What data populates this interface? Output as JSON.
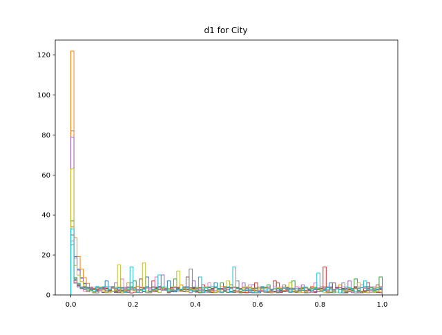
{
  "chart_data": {
    "type": "line",
    "title": "d1 for City",
    "xlabel": "",
    "ylabel": "",
    "xlim": [
      -0.05,
      1.05
    ],
    "ylim": [
      0,
      127.5
    ],
    "xticks": [
      0.0,
      0.2,
      0.4,
      0.6,
      0.8,
      1.0
    ],
    "xtick_labels": [
      "0.0",
      "0.2",
      "0.4",
      "0.6",
      "0.8",
      "1.0"
    ],
    "yticks": [
      0,
      20,
      40,
      60,
      80,
      100,
      120
    ],
    "ytick_labels": [
      "0",
      "20",
      "40",
      "60",
      "80",
      "100",
      "120"
    ],
    "grid": false,
    "legend": "none",
    "style": "step-histograms",
    "series_count": 10,
    "series": [
      {
        "color": "#1f77b4",
        "peak_x": 0.0,
        "peak": 82,
        "x_end": 1.0,
        "spikes": [
          [
            0.11,
            7
          ],
          [
            0.24,
            9
          ],
          [
            0.31,
            7
          ],
          [
            0.46,
            6
          ],
          [
            0.58,
            5
          ],
          [
            0.72,
            4
          ],
          [
            0.83,
            6
          ],
          [
            0.97,
            4
          ]
        ]
      },
      {
        "color": "#ff7f0e",
        "peak_x": 0.0,
        "peak": 122,
        "x_end": 1.0,
        "spikes": [
          [
            0.18,
            6
          ],
          [
            0.35,
            5
          ],
          [
            0.52,
            4
          ],
          [
            0.69,
            4
          ],
          [
            0.86,
            5
          ],
          [
            0.99,
            3
          ]
        ]
      },
      {
        "color": "#2ca02c",
        "peak_x": 0.0,
        "peak": 37,
        "x_end": 1.0,
        "spikes": [
          [
            0.2,
            7
          ],
          [
            0.33,
            8
          ],
          [
            0.48,
            6
          ],
          [
            0.63,
            5
          ],
          [
            0.71,
            7
          ],
          [
            0.91,
            8
          ],
          [
            1.0,
            9
          ]
        ]
      },
      {
        "color": "#d62728",
        "peak_x": 0.0,
        "peak": 30,
        "x_end": 1.0,
        "spikes": [
          [
            0.26,
            7
          ],
          [
            0.42,
            5
          ],
          [
            0.59,
            6
          ],
          [
            0.65,
            7
          ],
          [
            0.81,
            14
          ],
          [
            0.95,
            6
          ]
        ]
      },
      {
        "color": "#9467bd",
        "peak_x": 0.0,
        "peak": 79,
        "x_end": 1.0,
        "spikes": [
          [
            0.14,
            6
          ],
          [
            0.29,
            10
          ],
          [
            0.39,
            7
          ],
          [
            0.55,
            6
          ],
          [
            0.74,
            5
          ],
          [
            0.89,
            7
          ]
        ]
      },
      {
        "color": "#8c564b",
        "peak_x": 0.0,
        "peak": 34,
        "x_end": 1.0,
        "spikes": [
          [
            0.22,
            8
          ],
          [
            0.37,
            9
          ],
          [
            0.51,
            5
          ],
          [
            0.66,
            6
          ],
          [
            0.84,
            6
          ],
          [
            0.98,
            5
          ]
        ]
      },
      {
        "color": "#e377c2",
        "peak_x": 0.0,
        "peak": 27,
        "x_end": 1.0,
        "spikes": [
          [
            0.16,
            8
          ],
          [
            0.27,
            9
          ],
          [
            0.44,
            6
          ],
          [
            0.57,
            5
          ],
          [
            0.78,
            6
          ],
          [
            0.93,
            5
          ]
        ]
      },
      {
        "color": "#7f7f7f",
        "peak_x": 0.0,
        "peak": 25,
        "x_end": 1.0,
        "spikes": [
          [
            0.19,
            6
          ],
          [
            0.38,
            13
          ],
          [
            0.53,
            7
          ],
          [
            0.68,
            5
          ],
          [
            0.87,
            6
          ],
          [
            0.96,
            4
          ]
        ]
      },
      {
        "color": "#bcbd22",
        "peak_x": 0.0,
        "peak": 63,
        "x_end": 1.0,
        "spikes": [
          [
            0.15,
            15
          ],
          [
            0.23,
            16
          ],
          [
            0.34,
            12
          ],
          [
            0.5,
            7
          ],
          [
            0.7,
            6
          ],
          [
            0.92,
            6
          ]
        ]
      },
      {
        "color": "#17becf",
        "peak_x": 0.0,
        "peak": 33,
        "x_end": 1.0,
        "spikes": [
          [
            0.19,
            14
          ],
          [
            0.28,
            10
          ],
          [
            0.41,
            9
          ],
          [
            0.52,
            14
          ],
          [
            0.79,
            11
          ],
          [
            0.94,
            7
          ]
        ]
      }
    ]
  }
}
